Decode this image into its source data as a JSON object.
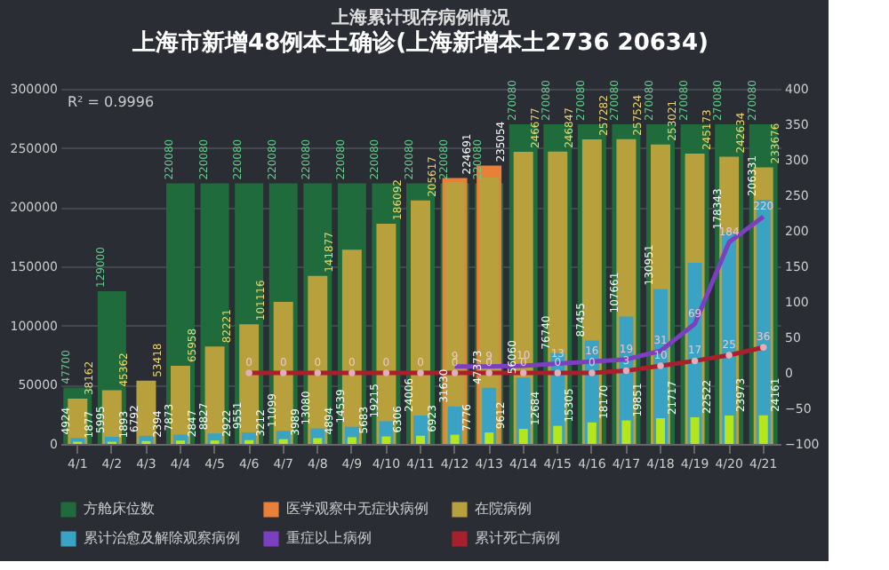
{
  "chart_data": {
    "type": "bar",
    "title": "上海累计现存病例情况",
    "subtitle": "上海市新增48例本土确诊(上海新增本土2736 20634)",
    "categories": [
      "4/1",
      "4/2",
      "4/3",
      "4/4",
      "4/5",
      "4/6",
      "4/7",
      "4/8",
      "4/9",
      "4/10",
      "4/11",
      "4/12",
      "4/13",
      "4/14",
      "4/15",
      "4/16",
      "4/17",
      "4/18",
      "4/19",
      "4/20",
      "4/21"
    ],
    "series": [
      {
        "name": "方舱床位数",
        "color": "#1f6b3c",
        "values": [
          47700,
          129000,
          null,
          220080,
          220080,
          220080,
          220080,
          220080,
          220080,
          220080,
          220080,
          220080,
          220080,
          270080,
          270080,
          270080,
          270080,
          270080,
          270080,
          270080,
          270080
        ],
        "value_labels": [
          "47700",
          "129000",
          null,
          "220080",
          "220080",
          "220080",
          "220080",
          "220080",
          "220080",
          "220080",
          "220080",
          "220080",
          "220080",
          "270080",
          "270080",
          "270080",
          "270080",
          "270080",
          "270080",
          "270080",
          "270080"
        ]
      },
      {
        "name": "医学观察中无症状病例",
        "color": "#e8803a",
        "values": [
          null,
          null,
          null,
          null,
          null,
          null,
          null,
          null,
          null,
          null,
          null,
          224691,
          235054,
          null,
          null,
          null,
          null,
          null,
          null,
          null,
          null
        ],
        "value_labels": [
          null,
          null,
          null,
          null,
          null,
          null,
          null,
          null,
          null,
          null,
          null,
          "224691",
          "235054",
          null,
          null,
          null,
          null,
          null,
          null,
          null,
          null
        ]
      },
      {
        "name": "在院病例",
        "color": "#b8a03c",
        "values": [
          38162,
          45362,
          53418,
          65958,
          82221,
          101116,
          120000,
          141877,
          164000,
          186092,
          205617,
          221000,
          225000,
          246677,
          246847,
          257282,
          257524,
          253021,
          245173,
          242634,
          233676
        ],
        "value_labels": [
          "38162",
          "45362",
          "53418",
          "65958",
          "82221",
          "101116",
          null,
          "141877",
          null,
          "186092",
          "205617",
          null,
          null,
          "246677",
          "246847",
          "257282",
          "257524",
          "253021",
          "245173",
          "242634",
          "233676"
        ]
      },
      {
        "name": "累计治愈及解除观察病例",
        "color": "#3aa3c4",
        "values": [
          4924,
          5995,
          6792,
          7873,
          8827,
          9551,
          11099,
          13080,
          14539,
          19215,
          24006,
          31630,
          47373,
          56060,
          76740,
          87455,
          107661,
          130951,
          153000,
          178343,
          206331
        ],
        "value_labels": [
          "4924",
          "5995",
          "6792",
          "7873",
          "8827",
          "9551",
          "11099",
          "13080",
          "14539",
          "19215",
          "24006",
          "31630",
          "47373",
          "56060",
          "76740",
          "87455",
          "107661",
          "130951",
          null,
          "178343",
          "206331"
        ]
      },
      {
        "color": "#b5e61d",
        "values": [
          1877,
          1893,
          2394,
          2847,
          2922,
          3212,
          3989,
          4894,
          5683,
          6306,
          6923,
          7776,
          9612,
          12684,
          15305,
          18170,
          19851,
          21717,
          22522,
          23973,
          24161
        ],
        "value_labels": [
          "1877",
          "1893",
          "2394",
          "2847",
          "2922",
          "3212",
          "3989",
          "4894",
          "5683",
          "6306",
          "6923",
          "7776",
          "9612",
          "12684",
          "15305",
          "18170",
          "19851",
          "21717",
          "22522",
          "23973",
          "24161"
        ]
      },
      {
        "name": "重症以上病例",
        "type": "line",
        "axis": "y2",
        "color": "#7b3fc0",
        "values": [
          null,
          null,
          null,
          null,
          null,
          null,
          null,
          null,
          null,
          null,
          null,
          9,
          9,
          10,
          13,
          16,
          19,
          31,
          69,
          184,
          220
        ],
        "value_labels": [
          null,
          null,
          null,
          null,
          null,
          null,
          null,
          null,
          null,
          null,
          null,
          "9",
          "9",
          "10",
          "13",
          "16",
          "19",
          "31",
          "69",
          "184",
          "220"
        ]
      },
      {
        "name": "累计死亡病例",
        "type": "line",
        "axis": "y2",
        "color": "#a8202c",
        "marker": "circle",
        "values": [
          null,
          null,
          null,
          null,
          null,
          0,
          0,
          0,
          0,
          0,
          0,
          0,
          0,
          0,
          0,
          0,
          3,
          10,
          17,
          25,
          36
        ],
        "value_labels": [
          null,
          null,
          null,
          null,
          null,
          "0",
          "0",
          "0",
          "0",
          "0",
          "0",
          "0",
          "0",
          "0",
          "0",
          "0",
          "3",
          "10",
          "17",
          "25",
          "36"
        ]
      }
    ],
    "ylim": [
      0,
      300000
    ],
    "yticks": [
      0,
      50000,
      100000,
      150000,
      200000,
      250000,
      300000
    ],
    "y2lim": [
      -100,
      400
    ],
    "y2ticks": [
      -100,
      -50,
      0,
      50,
      100,
      150,
      200,
      250,
      300,
      350,
      400
    ],
    "grid": "y",
    "legend": "bottom",
    "annotations": [
      "R² = 0.9996"
    ]
  }
}
